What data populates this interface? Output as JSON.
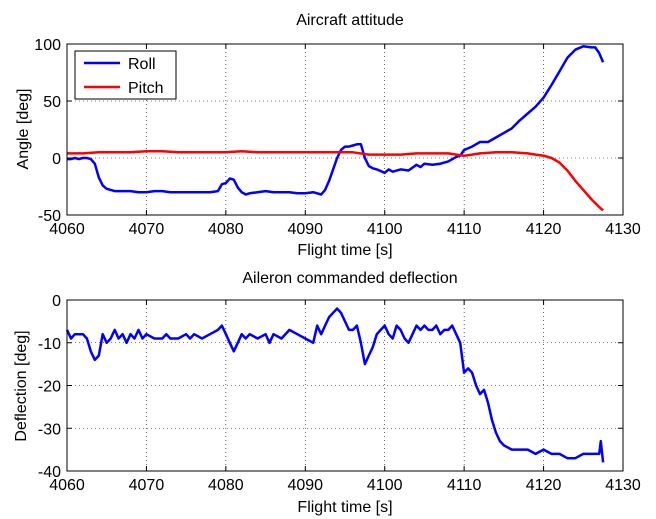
{
  "chart_data": [
    {
      "type": "line",
      "title": "Aircraft attitude",
      "xlabel": "Flight time [s]",
      "ylabel": "Angle [deg]",
      "xlim": [
        4060,
        4130
      ],
      "ylim": [
        -50,
        100
      ],
      "xticks": [
        4060,
        4070,
        4080,
        4090,
        4100,
        4110,
        4120,
        4130
      ],
      "yticks": [
        -50,
        0,
        50,
        100
      ],
      "grid": true,
      "legend_position": "top-left",
      "series": [
        {
          "name": "Roll",
          "color": "#0000ff",
          "x": [
            4060,
            4060.5,
            4061,
            4061.5,
            4062,
            4062.5,
            4063,
            4063.5,
            4064,
            4064.5,
            4065,
            4066,
            4067,
            4068,
            4069,
            4070,
            4071,
            4072,
            4073,
            4074,
            4075,
            4076,
            4077,
            4078,
            4079,
            4079.5,
            4080,
            4080.5,
            4081,
            4081.5,
            4082,
            4082.5,
            4083,
            4084,
            4085,
            4086,
            4087,
            4088,
            4089,
            4090,
            4091,
            4092,
            4092.5,
            4093,
            4093.5,
            4094,
            4094.5,
            4095,
            4095.5,
            4096,
            4096.5,
            4097,
            4097.5,
            4098,
            4098.5,
            4099,
            4100,
            4100.5,
            4101,
            4102,
            4103,
            4104,
            4104.5,
            4105,
            4106,
            4107,
            4108,
            4109,
            4109.5,
            4110,
            4111,
            4112,
            4113,
            4114,
            4115,
            4116,
            4117,
            4118,
            4119,
            4120,
            4121,
            4122,
            4123,
            4124,
            4125,
            4126,
            4126.5,
            4127,
            4127.5
          ],
          "y": [
            -1,
            -1,
            0,
            -1,
            0,
            0,
            -1,
            -5,
            -17,
            -24,
            -27,
            -29,
            -29,
            -29,
            -30,
            -30,
            -29,
            -29,
            -30,
            -30,
            -30,
            -30,
            -30,
            -30,
            -29,
            -23,
            -22,
            -18,
            -19,
            -26,
            -30,
            -32,
            -31,
            -30,
            -29,
            -30,
            -30,
            -30,
            -31,
            -31,
            -30,
            -32,
            -28,
            -20,
            -10,
            0,
            7,
            10,
            10,
            11,
            12,
            12,
            0,
            -7,
            -9,
            -10,
            -13,
            -10,
            -12,
            -10,
            -11,
            -6,
            -8,
            -5,
            -6,
            -5,
            -3,
            1,
            2,
            7,
            10,
            14,
            14,
            18,
            22,
            26,
            33,
            39,
            45,
            53,
            64,
            76,
            88,
            95,
            98,
            97,
            97,
            92,
            84
          ]
        },
        {
          "name": "Pitch",
          "color": "#ff0000",
          "x": [
            4060,
            4062,
            4064,
            4066,
            4068,
            4070,
            4072,
            4074,
            4076,
            4078,
            4080,
            4082,
            4084,
            4086,
            4088,
            4090,
            4092,
            4094,
            4096,
            4098,
            4100,
            4102,
            4104,
            4106,
            4108,
            4109,
            4110,
            4111,
            4112,
            4114,
            4116,
            4118,
            4119,
            4120,
            4121,
            4122,
            4123,
            4124,
            4125,
            4126,
            4127,
            4127.5
          ],
          "y": [
            4,
            4,
            5,
            5,
            5,
            6,
            6,
            5,
            5,
            5,
            5,
            6,
            5,
            5,
            5,
            5,
            5,
            5,
            5,
            3,
            3,
            3,
            4,
            4,
            4,
            3,
            2,
            3,
            4,
            5,
            5,
            4,
            3,
            2,
            0,
            -4,
            -11,
            -20,
            -28,
            -36,
            -43,
            -46
          ]
        }
      ]
    },
    {
      "type": "line",
      "title": "Aileron commanded deflection",
      "xlabel": "Flight time [s]",
      "ylabel": "Deflection [deg]",
      "xlim": [
        4060,
        4130
      ],
      "ylim": [
        -40,
        0
      ],
      "xticks": [
        4060,
        4070,
        4080,
        4090,
        4100,
        4110,
        4120,
        4130
      ],
      "yticks": [
        -40,
        -30,
        -20,
        -10,
        0
      ],
      "grid": true,
      "series": [
        {
          "color": "#0000ff",
          "x": [
            4060,
            4060.5,
            4061,
            4061.5,
            4062,
            4062.5,
            4063,
            4063.5,
            4064,
            4064.5,
            4065,
            4065.5,
            4066,
            4066.5,
            4067,
            4067.5,
            4068,
            4068.5,
            4069,
            4069.5,
            4070,
            4071,
            4072,
            4072.5,
            4073,
            4074,
            4075,
            4075.5,
            4076,
            4077,
            4078,
            4079,
            4079.5,
            4080,
            4080.5,
            4081,
            4081.5,
            4082,
            4082.5,
            4083,
            4084,
            4085,
            4085.5,
            4086,
            4087,
            4088,
            4089,
            4090,
            4091,
            4091.5,
            4092,
            4092.5,
            4093,
            4093.5,
            4094,
            4094.5,
            4095,
            4095.5,
            4096,
            4096.5,
            4097,
            4097.5,
            4098,
            4098.5,
            4099,
            4099.5,
            4100,
            4100.5,
            4101,
            4101.5,
            4102,
            4102.5,
            4103,
            4103.5,
            4104,
            4104.5,
            4105,
            4105.5,
            4106,
            4106.5,
            4107,
            4107.5,
            4108,
            4108.5,
            4109,
            4109.5,
            4110,
            4110.5,
            4111,
            4111.5,
            4112,
            4112.5,
            4113,
            4113.5,
            4114,
            4114.5,
            4115,
            4116,
            4117,
            4118,
            4119,
            4120,
            4121,
            4122,
            4123,
            4124,
            4125,
            4126,
            4127,
            4127.2,
            4127.5
          ],
          "y": [
            -7,
            -9,
            -8,
            -8,
            -8,
            -9,
            -12,
            -14,
            -13,
            -8,
            -10,
            -9,
            -7,
            -9,
            -8,
            -10,
            -8,
            -9,
            -7,
            -9,
            -8,
            -9,
            -9,
            -8,
            -9,
            -9,
            -8,
            -9,
            -8,
            -9,
            -8,
            -7,
            -6,
            -8,
            -10,
            -12,
            -10,
            -8,
            -9,
            -8,
            -9,
            -8,
            -10,
            -8,
            -9,
            -7,
            -8,
            -9,
            -10,
            -6,
            -8,
            -6,
            -4,
            -3,
            -2,
            -3,
            -5,
            -7,
            -7,
            -6,
            -10,
            -15,
            -13,
            -11,
            -8,
            -7,
            -6,
            -8,
            -9,
            -6,
            -7,
            -9,
            -10,
            -8,
            -6,
            -7,
            -6,
            -7,
            -7,
            -6,
            -8,
            -7,
            -7,
            -6,
            -8,
            -10,
            -17,
            -16,
            -17,
            -20,
            -22,
            -21,
            -24,
            -28,
            -31,
            -33,
            -34,
            -35,
            -35,
            -35,
            -36,
            -35,
            -36,
            -36,
            -37,
            -37,
            -36,
            -36,
            -36,
            -33,
            -38
          ]
        }
      ]
    }
  ]
}
